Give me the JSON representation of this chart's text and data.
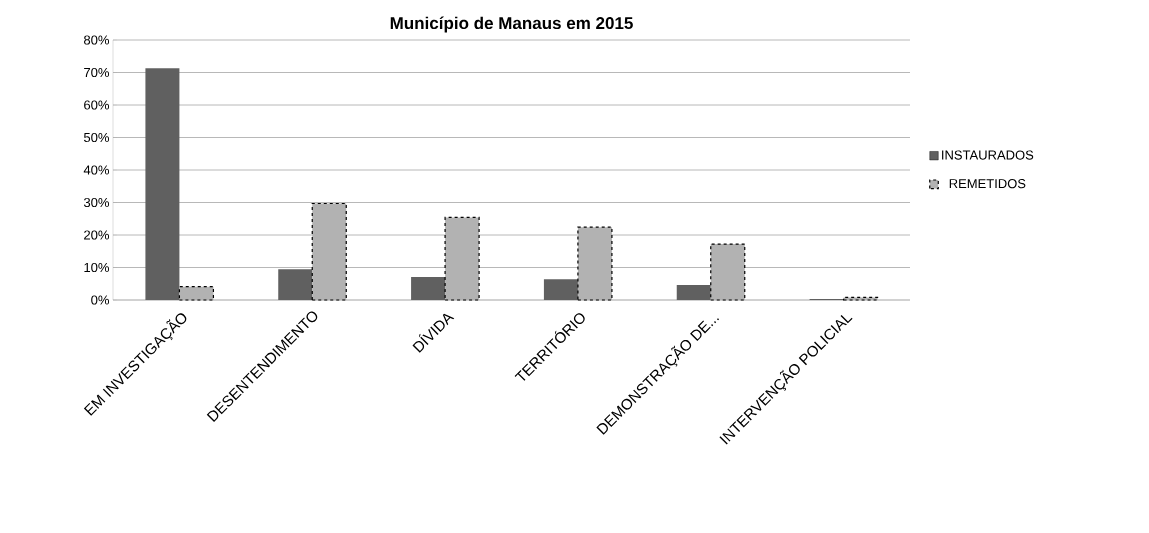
{
  "chart_data": {
    "type": "bar",
    "title": "Município de Manaus em 2015",
    "categories": [
      "EM INVESTIGAÇÃO",
      "DESENTENDIMENTO",
      "DÍVIDA",
      "TERRITÓRIO",
      "DEMONSTRAÇÃO DE...",
      "INTERVENÇÃO POLICIAL"
    ],
    "series": [
      {
        "name": "INSTAURADOS",
        "color": "#606060",
        "values": [
          71.3,
          9.5,
          7.1,
          6.4,
          4.6,
          0.3
        ]
      },
      {
        "name": "REMETIDOS",
        "color": "#b2b2b2",
        "line_style": "dashed",
        "values": [
          4.1,
          29.7,
          25.4,
          22.4,
          17.2,
          0.8
        ]
      }
    ],
    "ylim": [
      0,
      80
    ],
    "yticks": [
      {
        "value": 0,
        "label": "0%"
      },
      {
        "value": 10,
        "label": "10%"
      },
      {
        "value": 20,
        "label": "20%"
      },
      {
        "value": 30,
        "label": "30%"
      },
      {
        "value": 40,
        "label": "40%"
      },
      {
        "value": 50,
        "label": "50%"
      },
      {
        "value": 60,
        "label": "60%"
      },
      {
        "value": 70,
        "label": "70%"
      },
      {
        "value": 80,
        "label": "80%"
      }
    ],
    "grid": "y",
    "legend": "right"
  }
}
